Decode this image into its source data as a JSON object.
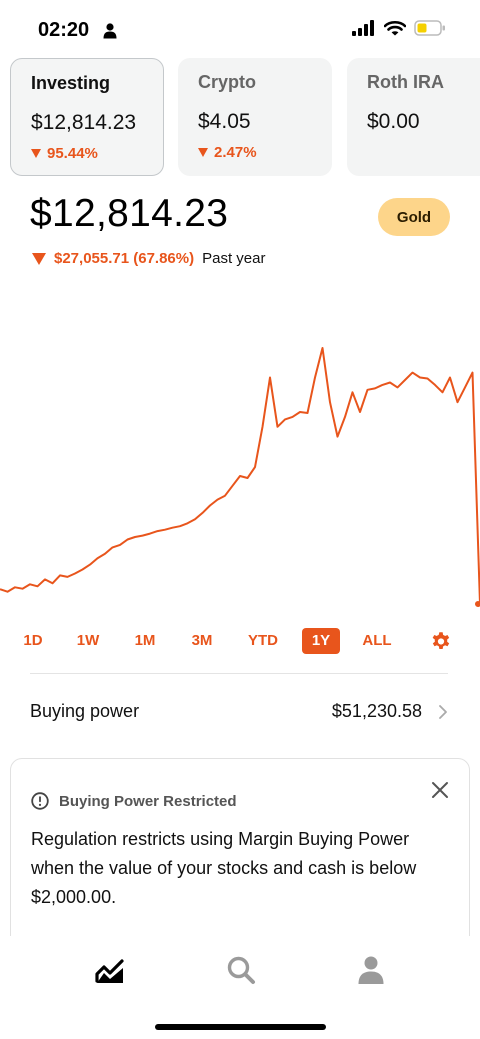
{
  "status_bar": {
    "time": "02:20",
    "icons": [
      "person-icon",
      "signal-icon",
      "wifi-icon",
      "battery-icon"
    ]
  },
  "accounts": [
    {
      "name": "Investing",
      "value": "$12,814.23",
      "change": "95.44%",
      "selected": true
    },
    {
      "name": "Crypto",
      "value": "$4.05",
      "change": "2.47%",
      "selected": false
    },
    {
      "name": "Roth IRA",
      "value": "$0.00",
      "change": "",
      "selected": false
    }
  ],
  "portfolio": {
    "value": "$12,814.23",
    "gold_label": "Gold",
    "change_amount": "$27,055.71 (67.86%)",
    "change_period": "Past year"
  },
  "chart_data": {
    "type": "line",
    "title": "",
    "xlabel": "",
    "ylabel": "",
    "grid": false,
    "series": [
      {
        "values": [
          12.0,
          11.5,
          12.4,
          12.1,
          13.0,
          12.6,
          14.0,
          13.2,
          14.8,
          14.5,
          15.2,
          16.0,
          17.0,
          18.3,
          19.2,
          20.5,
          21.0,
          22.1,
          22.6,
          22.9,
          23.3,
          23.8,
          24.1,
          24.5,
          24.8,
          25.4,
          26.2,
          27.5,
          29.0,
          30.2,
          31.0,
          33.0,
          35.0,
          34.6,
          36.8,
          45.0,
          55.0,
          45.0,
          46.5,
          47.0,
          48.0,
          47.8,
          55.0,
          61.0,
          50.0,
          43.0,
          47.0,
          52.0,
          48.0,
          52.5,
          52.8,
          53.5,
          54.0,
          53.0,
          54.5,
          56.0,
          55.0,
          54.8,
          53.5,
          52.0,
          55.0,
          50.0,
          53.0,
          56.0,
          9.0
        ]
      }
    ],
    "line_color": "#e8551c"
  },
  "ranges": {
    "tabs": [
      "1D",
      "1W",
      "1M",
      "3M",
      "YTD",
      "1Y",
      "ALL"
    ],
    "active": "1Y",
    "settings_icon": "gear-icon"
  },
  "buying_power": {
    "label": "Buying power",
    "value": "$51,230.58"
  },
  "notice": {
    "title": "Buying Power Restricted",
    "body": "Regulation restricts using Margin Buying Power when the value of your stocks and cash is below $2,000.00."
  },
  "tab_bar": {
    "icons": [
      "chart-icon",
      "search-icon",
      "account-icon"
    ]
  },
  "colors": {
    "accent": "#e8551c",
    "gold": "#fdd58a",
    "card_bg": "#f3f4f4"
  }
}
